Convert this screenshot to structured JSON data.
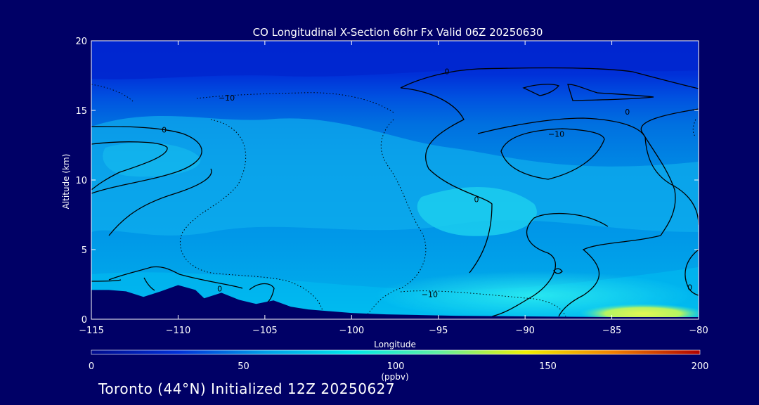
{
  "chart_data": {
    "type": "heatmap",
    "title": "CO Longitudinal X-Section 66hr  Fx Valid 06Z 20250630",
    "xlabel": "Longitude",
    "ylabel": "Altitude (km)",
    "xlim": [
      -115,
      -80
    ],
    "ylim": [
      0,
      20
    ],
    "x_ticks": [
      -115,
      -110,
      -105,
      -100,
      -95,
      -90,
      -85,
      -80
    ],
    "y_ticks": [
      0,
      5,
      10,
      15,
      20
    ],
    "x_tick_labels": [
      "−115",
      "−110",
      "−105",
      "−100",
      "−95",
      "−90",
      "−85",
      "−80"
    ],
    "y_tick_labels": [
      "0",
      "5",
      "10",
      "15",
      "20"
    ],
    "colorbar": {
      "ticks": [
        "0",
        "50",
        "100",
        "150",
        "200"
      ],
      "range": [
        0,
        200
      ],
      "unit": "(ppbv)",
      "colors": [
        "#000a8c",
        "#0030d8",
        "#00a0e8",
        "#00e8e8",
        "#60f0a0",
        "#f0f000",
        "#f08000",
        "#b00000"
      ]
    },
    "contour_labels": [
      {
        "text": "0",
        "x": -110.8,
        "y": 13.6
      },
      {
        "text": "−10",
        "x": -107.2,
        "y": 15.9
      },
      {
        "text": "0",
        "x": -94.5,
        "y": 17.8
      },
      {
        "text": "−10",
        "x": -88.2,
        "y": 13.3
      },
      {
        "text": "0",
        "x": -84.1,
        "y": 14.9
      },
      {
        "text": "0",
        "x": -92.8,
        "y": 8.6
      },
      {
        "text": "0",
        "x": -107.6,
        "y": 2.2
      },
      {
        "text": "−10",
        "x": -95.5,
        "y": 1.8
      },
      {
        "text": "0",
        "x": -80.5,
        "y": 2.3
      }
    ],
    "terrain_km": [
      [
        -115,
        2.1
      ],
      [
        -114,
        2.1
      ],
      [
        -113,
        2.0
      ],
      [
        -112,
        1.6
      ],
      [
        -111,
        2.0
      ],
      [
        -110,
        2.45
      ],
      [
        -109,
        2.1
      ],
      [
        -108.5,
        1.5
      ],
      [
        -107.5,
        1.9
      ],
      [
        -106.5,
        1.4
      ],
      [
        -105.5,
        1.1
      ],
      [
        -104.5,
        1.35
      ],
      [
        -103.5,
        0.9
      ],
      [
        -102.5,
        0.7
      ],
      [
        -101,
        0.55
      ],
      [
        -100,
        0.45
      ],
      [
        -98,
        0.35
      ],
      [
        -96,
        0.3
      ],
      [
        -94,
        0.25
      ],
      [
        -90,
        0.2
      ],
      [
        -85,
        0.15
      ],
      [
        -80,
        0.15
      ]
    ]
  },
  "footer": "Toronto (44°N) Initialized 12Z 20250627"
}
